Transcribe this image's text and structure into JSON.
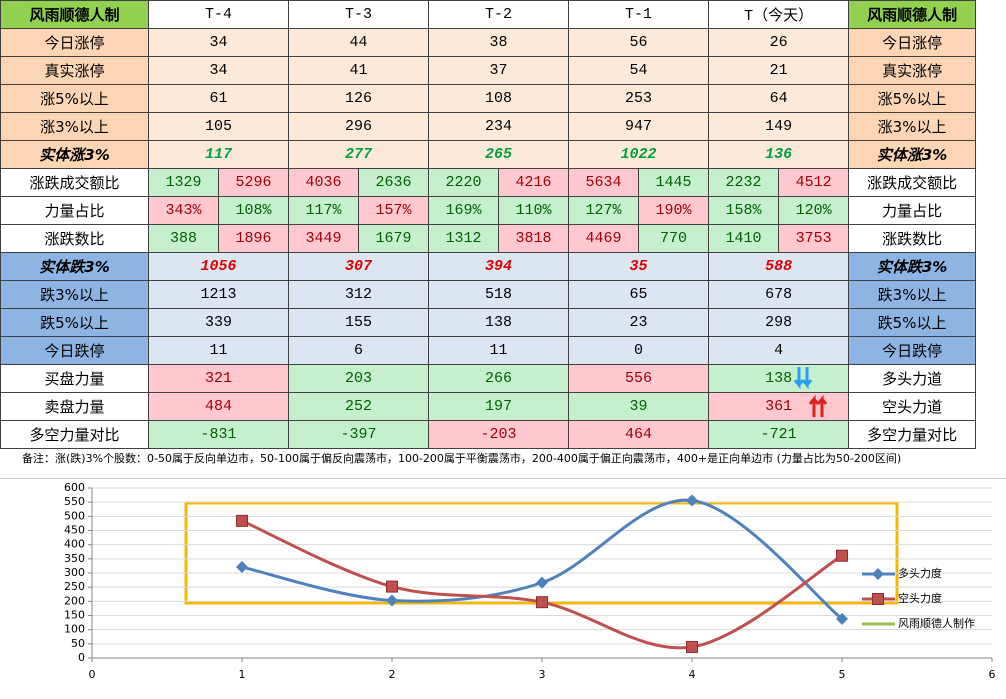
{
  "table": {
    "header": [
      "风雨顺德人制",
      "T-4",
      "T-3",
      "T-2",
      "T-1",
      "T（今天）",
      "风雨顺德人制"
    ],
    "header_label_bg": "#92d050",
    "rows": [
      {
        "label": "今日涨停",
        "label_bg": "#fcd5b4",
        "bg": "#fde9d9",
        "cells": [
          34,
          44,
          38,
          56,
          26
        ]
      },
      {
        "label": "真实涨停",
        "label_bg": "#fcd5b4",
        "bg": "#fde9d9",
        "cells": [
          34,
          41,
          37,
          54,
          21
        ]
      },
      {
        "label": "涨5%以上",
        "label_bg": "#fcd5b4",
        "bg": "#fde9d9",
        "cells": [
          61,
          126,
          108,
          253,
          64
        ]
      },
      {
        "label": "涨3%以上",
        "label_bg": "#fcd5b4",
        "bg": "#fde9d9",
        "cells": [
          105,
          296,
          234,
          947,
          149
        ]
      },
      {
        "label": "实体涨3%",
        "label_bg": "#fcd5b4",
        "bg": "#fde9d9",
        "emphasis": true,
        "text_color": "#00a040",
        "cells": [
          117,
          277,
          265,
          1022,
          136
        ]
      },
      {
        "label": "涨跌成交额比",
        "label_bg": "#ffffff",
        "cells": [
          1329,
          5296,
          4036,
          2636,
          2220,
          4216,
          5634,
          1445,
          2232,
          4512
        ],
        "fills": [
          "#c6efce",
          "#ffc7ce",
          "#ffc7ce",
          "#c6efce",
          "#c6efce",
          "#ffc7ce",
          "#ffc7ce",
          "#c6efce",
          "#c6efce",
          "#ffc7ce"
        ]
      },
      {
        "label": "力量占比",
        "label_bg": "#ffffff",
        "cells": [
          "343%",
          "108%",
          "117%",
          "157%",
          "169%",
          "110%",
          "127%",
          "190%",
          "158%",
          "120%"
        ],
        "fills": [
          "#ffc7ce",
          "#c6efce",
          "#c6efce",
          "#ffc7ce",
          "#c6efce",
          "#c6efce",
          "#c6efce",
          "#ffc7ce",
          "#c6efce",
          "#c6efce"
        ]
      },
      {
        "label": "涨跌数比",
        "label_bg": "#ffffff",
        "cells": [
          388,
          1896,
          3449,
          1679,
          1312,
          3818,
          4469,
          770,
          1410,
          3753
        ],
        "fills": [
          "#c6efce",
          "#ffc7ce",
          "#ffc7ce",
          "#c6efce",
          "#c6efce",
          "#ffc7ce",
          "#ffc7ce",
          "#c6efce",
          "#c6efce",
          "#ffc7ce"
        ]
      },
      {
        "label": "实体跌3%",
        "label_bg": "#8db4e2",
        "bg": "#dce6f1",
        "emphasis": true,
        "text_color": "#e00000",
        "cells": [
          1056,
          307,
          394,
          35,
          588
        ]
      },
      {
        "label": "跌3%以上",
        "label_bg": "#8db4e2",
        "bg": "#dce6f1",
        "cells": [
          1213,
          312,
          518,
          65,
          678
        ]
      },
      {
        "label": "跌5%以上",
        "label_bg": "#8db4e2",
        "bg": "#dce6f1",
        "cells": [
          339,
          155,
          138,
          23,
          298
        ]
      },
      {
        "label": "今日跌停",
        "label_bg": "#8db4e2",
        "bg": "#dce6f1",
        "cells": [
          11,
          6,
          11,
          0,
          4
        ]
      },
      {
        "label": "买盘力量",
        "right_label": "多头力道",
        "label_bg": "#ffffff",
        "cells": [
          321,
          203,
          266,
          556,
          138
        ],
        "fills": [
          "#ffc7ce",
          "#c6efce",
          "#c6efce",
          "#ffc7ce",
          "#c6efce"
        ]
      },
      {
        "label": "卖盘力量",
        "right_label": "空头力道",
        "label_bg": "#ffffff",
        "cells": [
          484,
          252,
          197,
          39,
          361
        ],
        "fills": [
          "#ffc7ce",
          "#c6efce",
          "#c6efce",
          "#c6efce",
          "#ffc7ce"
        ]
      },
      {
        "label": "多空力量对比",
        "right_label": "多空力量对比",
        "label_bg": "#ffffff",
        "cells": [
          -831,
          -397,
          -203,
          464,
          -721
        ],
        "fills": [
          "#c6efce",
          "#c6efce",
          "#ffc7ce",
          "#ffc7ce",
          "#c6efce"
        ]
      }
    ]
  },
  "note": "备注：涨(跌)3%个股数：0-50属于反向单边市，50-100属于偏反向震荡市，100-200属于平衡震荡市，200-400属于偏正向震荡市，400+是正向单边市 (力量占比为50-200区间)",
  "chart_data": {
    "type": "line",
    "x": [
      1,
      2,
      3,
      4,
      5
    ],
    "xlim": [
      0,
      6
    ],
    "xticks": [
      0,
      1,
      2,
      3,
      4,
      5,
      6
    ],
    "ylim": [
      0,
      600
    ],
    "yticks": [
      0,
      50,
      100,
      150,
      200,
      250,
      300,
      350,
      400,
      450,
      500,
      550,
      600
    ],
    "grid": true,
    "legend": "right",
    "smooth": true,
    "series": [
      {
        "name": "多头力度",
        "color": "#4f81bd",
        "marker": "diamond",
        "values": [
          321,
          203,
          266,
          556,
          138
        ]
      },
      {
        "name": "空头力度",
        "color": "#c0504d",
        "marker": "square",
        "values": [
          484,
          252,
          197,
          39,
          361
        ]
      },
      {
        "name": "风雨顺德人制作",
        "color": "#9bbb59",
        "values": [
          null,
          null,
          null,
          null,
          null
        ]
      }
    ]
  }
}
